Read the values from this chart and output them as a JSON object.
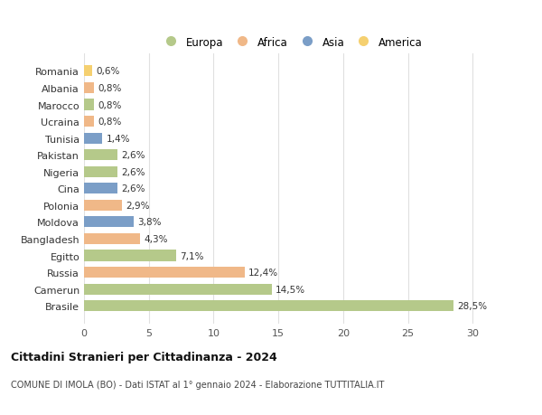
{
  "categories": [
    "Romania",
    "Albania",
    "Marocco",
    "Ucraina",
    "Tunisia",
    "Pakistan",
    "Nigeria",
    "Cina",
    "Polonia",
    "Moldova",
    "Bangladesh",
    "Egitto",
    "Russia",
    "Camerun",
    "Brasile"
  ],
  "values": [
    28.5,
    14.5,
    12.4,
    7.1,
    4.3,
    3.8,
    2.9,
    2.6,
    2.6,
    2.6,
    1.4,
    0.8,
    0.8,
    0.8,
    0.6
  ],
  "labels": [
    "28,5%",
    "14,5%",
    "12,4%",
    "7,1%",
    "4,3%",
    "3,8%",
    "2,9%",
    "2,6%",
    "2,6%",
    "2,6%",
    "1,4%",
    "0,8%",
    "0,8%",
    "0,8%",
    "0,6%"
  ],
  "continents": [
    "Europa",
    "Europa",
    "Africa",
    "Europa",
    "Africa",
    "Asia",
    "Africa",
    "Asia",
    "Europa",
    "Europa",
    "Asia",
    "Africa",
    "Europa",
    "Africa",
    "America"
  ],
  "colors": {
    "Europa": "#b5c98a",
    "Africa": "#f0b888",
    "Asia": "#7b9ec7",
    "America": "#f5d070"
  },
  "legend_order": [
    "Europa",
    "Africa",
    "Asia",
    "America"
  ],
  "title": "Cittadini Stranieri per Cittadinanza - 2024",
  "subtitle": "COMUNE DI IMOLA (BO) - Dati ISTAT al 1° gennaio 2024 - Elaborazione TUTTITALIA.IT",
  "xlim": [
    0,
    32
  ],
  "xticks": [
    0,
    5,
    10,
    15,
    20,
    25,
    30
  ],
  "bg_color": "#ffffff",
  "grid_color": "#e0e0e0"
}
